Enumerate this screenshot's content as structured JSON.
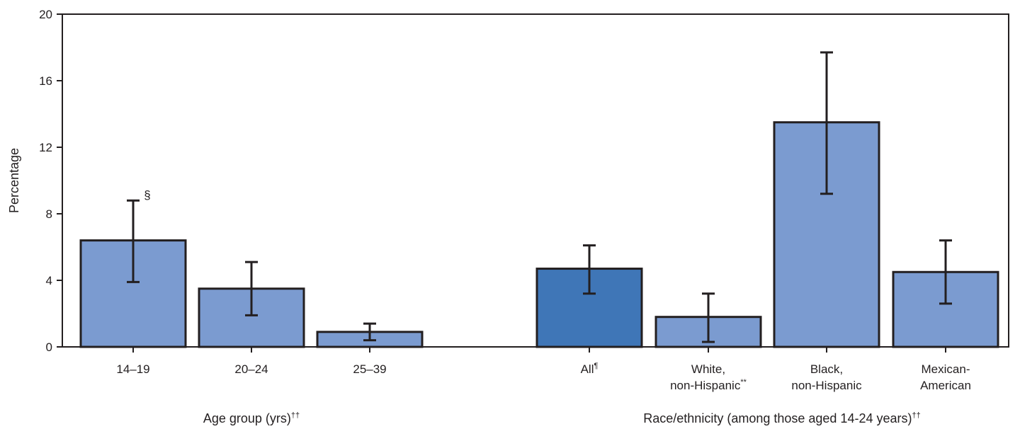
{
  "chart_data": {
    "type": "bar",
    "ylabel": "Percentage",
    "ylim": [
      0,
      20
    ],
    "yticks": [
      "0",
      "4",
      "8",
      "12",
      "16",
      "20"
    ],
    "colors": {
      "bar": "#7b9bd0",
      "highlight": "#3f76b7",
      "stroke": "#231f20"
    },
    "groups": [
      {
        "label": "Age group (yrs)",
        "label_sup": "††"
      },
      {
        "label": "Race/ethnicity (among those aged 14-24 years)",
        "label_sup": "††"
      }
    ],
    "categories": [
      {
        "line1": "14–19",
        "line1_sup": "",
        "line2": "",
        "line2_sup": "",
        "value": 6.4,
        "ci_low": 3.9,
        "ci_high": 8.8,
        "note": "§",
        "group": 0,
        "highlight": false
      },
      {
        "line1": "20–24",
        "line1_sup": "",
        "line2": "",
        "line2_sup": "",
        "value": 3.5,
        "ci_low": 1.9,
        "ci_high": 5.1,
        "note": "",
        "group": 0,
        "highlight": false
      },
      {
        "line1": "25–39",
        "line1_sup": "",
        "line2": "",
        "line2_sup": "",
        "value": 0.9,
        "ci_low": 0.4,
        "ci_high": 1.4,
        "note": "",
        "group": 0,
        "highlight": false
      },
      {
        "line1": "All",
        "line1_sup": "¶",
        "line2": "",
        "line2_sup": "",
        "value": 4.7,
        "ci_low": 3.2,
        "ci_high": 6.1,
        "note": "",
        "group": 1,
        "highlight": true
      },
      {
        "line1": "White,",
        "line1_sup": "",
        "line2": "non-Hispanic",
        "line2_sup": "**",
        "value": 1.8,
        "ci_low": 0.3,
        "ci_high": 3.2,
        "note": "",
        "group": 1,
        "highlight": false
      },
      {
        "line1": "Black,",
        "line1_sup": "",
        "line2": "non-Hispanic",
        "line2_sup": "",
        "value": 13.5,
        "ci_low": 9.2,
        "ci_high": 17.7,
        "note": "",
        "group": 1,
        "highlight": false
      },
      {
        "line1": "Mexican-",
        "line1_sup": "",
        "line2": "American",
        "line2_sup": "",
        "value": 4.5,
        "ci_low": 2.6,
        "ci_high": 6.4,
        "note": "",
        "group": 1,
        "highlight": false
      }
    ]
  }
}
